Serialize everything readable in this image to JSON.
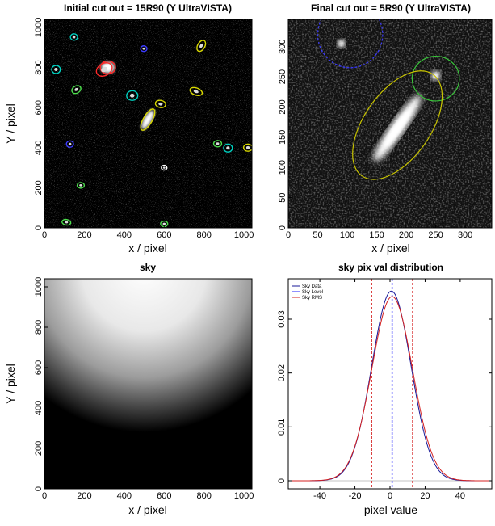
{
  "chart_data": [
    {
      "type": "image",
      "title": "Initial cut out = 15R90 (Y UltraVISTA)",
      "xlabel": "x / pixel",
      "ylabel": "Y / pixel",
      "xlim": [
        0,
        1040
      ],
      "ylim": [
        0,
        1040
      ],
      "xticks": [
        "0",
        "200",
        "400",
        "600",
        "800",
        "1000"
      ],
      "yticks": [
        "0",
        "200",
        "400",
        "600",
        "800",
        "1000"
      ],
      "colormap": "grayscale",
      "colors": {
        "ring_colors": [
          "#ff2a2a",
          "#00d1c1",
          "#d8d800",
          "#4cdd4c",
          "#3a3aff",
          "#ffffff"
        ]
      },
      "sources": [
        {
          "x": 318,
          "y": 800,
          "a": 38,
          "b": 32,
          "angle": 0,
          "color": "#ff2a2a",
          "bright": true
        },
        {
          "x": 300,
          "y": 790,
          "a": 42,
          "b": 30,
          "angle": -30,
          "color": "#ff2a2a"
        },
        {
          "x": 518,
          "y": 540,
          "a": 60,
          "b": 22,
          "angle": -60,
          "color": "#d8d800",
          "bright": true
        },
        {
          "x": 58,
          "y": 790,
          "a": 22,
          "b": 20,
          "angle": 0,
          "color": "#00d1c1"
        },
        {
          "x": 148,
          "y": 952,
          "a": 18,
          "b": 16,
          "angle": 0,
          "color": "#00d1c1"
        },
        {
          "x": 160,
          "y": 690,
          "a": 24,
          "b": 18,
          "angle": -30,
          "color": "#4cdd4c"
        },
        {
          "x": 440,
          "y": 660,
          "a": 28,
          "b": 24,
          "angle": 0,
          "color": "#00d1c1"
        },
        {
          "x": 498,
          "y": 894,
          "a": 16,
          "b": 14,
          "angle": 0,
          "color": "#3a3aff"
        },
        {
          "x": 786,
          "y": 908,
          "a": 30,
          "b": 18,
          "angle": -60,
          "color": "#d8d800"
        },
        {
          "x": 760,
          "y": 680,
          "a": 32,
          "b": 18,
          "angle": 20,
          "color": "#d8d800"
        },
        {
          "x": 582,
          "y": 618,
          "a": 26,
          "b": 18,
          "angle": 10,
          "color": "#d8d800"
        },
        {
          "x": 128,
          "y": 418,
          "a": 18,
          "b": 16,
          "angle": 0,
          "color": "#3a3aff"
        },
        {
          "x": 868,
          "y": 420,
          "a": 20,
          "b": 16,
          "angle": 0,
          "color": "#4cdd4c"
        },
        {
          "x": 920,
          "y": 398,
          "a": 22,
          "b": 20,
          "angle": 0,
          "color": "#00d1c1"
        },
        {
          "x": 1020,
          "y": 400,
          "a": 22,
          "b": 18,
          "angle": 0,
          "color": "#d8d800"
        },
        {
          "x": 182,
          "y": 212,
          "a": 18,
          "b": 14,
          "angle": 0,
          "color": "#4cdd4c"
        },
        {
          "x": 110,
          "y": 28,
          "a": 22,
          "b": 14,
          "angle": 10,
          "color": "#4cdd4c"
        },
        {
          "x": 600,
          "y": 20,
          "a": 18,
          "b": 14,
          "angle": 0,
          "color": "#4cdd4c"
        },
        {
          "x": 600,
          "y": 300,
          "a": 14,
          "b": 12,
          "angle": 0,
          "color": "#ffffff"
        }
      ]
    },
    {
      "type": "image",
      "title": "Final cut out = 5R90 (Y UltraVISTA)",
      "xlabel": "x / pixel",
      "ylabel": "",
      "xlim": [
        0,
        345
      ],
      "ylim": [
        0,
        345
      ],
      "xticks": [
        "0",
        "50",
        "100",
        "150",
        "200",
        "250",
        "300"
      ],
      "yticks": [
        "0",
        "50",
        "100",
        "150",
        "200",
        "250",
        "300"
      ],
      "colormap": "grayscale",
      "sources": [
        {
          "x": 105,
          "y": 320,
          "a": 55,
          "b": 55,
          "angle": 0,
          "color": "#3a3aff",
          "dashed": true
        },
        {
          "x": 250,
          "y": 247,
          "a": 40,
          "b": 37,
          "angle": 0,
          "color": "#39c43a"
        },
        {
          "x": 185,
          "y": 170,
          "a": 105,
          "b": 55,
          "angle": 55,
          "color": "#c8c400"
        }
      ],
      "bright_blobs": [
        {
          "x": 185,
          "y": 165,
          "a": 68,
          "b": 12,
          "angle": 55
        },
        {
          "x": 250,
          "y": 252,
          "a": 8,
          "b": 8,
          "angle": 0
        },
        {
          "x": 90,
          "y": 305,
          "a": 7,
          "b": 7,
          "angle": 0
        }
      ]
    },
    {
      "type": "heatmap",
      "title": "sky",
      "xlabel": "x / pixel",
      "ylabel": "Y / pixel",
      "xlim": [
        0,
        1040
      ],
      "ylim": [
        0,
        1040
      ],
      "xticks": [
        "0",
        "200",
        "400",
        "600",
        "800",
        "1000"
      ],
      "yticks": [
        "0",
        "200",
        "400",
        "600",
        "800",
        "1000"
      ],
      "colormap": "grayscale",
      "gradient": {
        "bright_center_x": 500,
        "bright_center_y": 1100,
        "dark_below_y": 420
      }
    },
    {
      "type": "line",
      "title": "sky pix val distribution",
      "xlabel": "pixel value",
      "ylabel": "",
      "xlim": [
        -58,
        58
      ],
      "ylim": [
        -0.0015,
        0.0375
      ],
      "xticks": [
        -40,
        -20,
        0,
        20,
        40
      ],
      "yticks": [
        0,
        0.01,
        0.02,
        0.03
      ],
      "legend_position": "top-left",
      "series": [
        {
          "name": "Sky Data",
          "color": "#1a1a99",
          "mu": 0.8,
          "sigma": 11.2,
          "amp": 0.0352
        },
        {
          "name": "Sky Level",
          "color": "#2222ff",
          "x_value": 1.2
        },
        {
          "name": "Sky RMS",
          "color": "#d42020",
          "mu": 1.2,
          "sigma": 11.6,
          "amp": 0.0342,
          "rms_lines": [
            -10.4,
            12.8
          ]
        }
      ]
    }
  ]
}
